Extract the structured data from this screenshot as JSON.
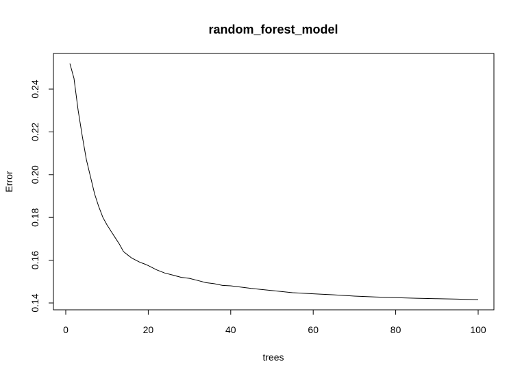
{
  "chart_data": {
    "type": "line",
    "title": "random_forest_model",
    "xlabel": "trees",
    "ylabel": "Error",
    "xlim": [
      0,
      100
    ],
    "ylim": [
      0.14,
      0.24
    ],
    "x_ticks": [
      "0",
      "20",
      "40",
      "60",
      "80",
      "100"
    ],
    "y_ticks": [
      "0.14",
      "0.16",
      "0.18",
      "0.20",
      "0.22",
      "0.24"
    ],
    "grid": false,
    "series": [
      {
        "color": "#000000",
        "x": [
          1,
          2,
          3,
          4,
          5,
          6,
          7,
          8,
          9,
          10,
          11,
          12,
          13,
          14,
          15,
          16,
          17,
          18,
          19,
          20,
          22,
          24,
          26,
          28,
          30,
          32,
          34,
          36,
          38,
          40,
          45,
          50,
          55,
          60,
          65,
          70,
          75,
          80,
          85,
          90,
          95,
          100
        ],
        "values": [
          0.252,
          0.245,
          0.23,
          0.218,
          0.207,
          0.199,
          0.191,
          0.185,
          0.18,
          0.1765,
          0.1735,
          0.1705,
          0.1675,
          0.164,
          0.1625,
          0.161,
          0.16,
          0.159,
          0.1583,
          0.1575,
          0.1555,
          0.154,
          0.153,
          0.152,
          0.1515,
          0.1505,
          0.1495,
          0.149,
          0.1482,
          0.148,
          0.1468,
          0.1458,
          0.1448,
          0.1443,
          0.1438,
          0.1432,
          0.1428,
          0.1425,
          0.1422,
          0.142,
          0.1418,
          0.1415
        ]
      }
    ]
  }
}
